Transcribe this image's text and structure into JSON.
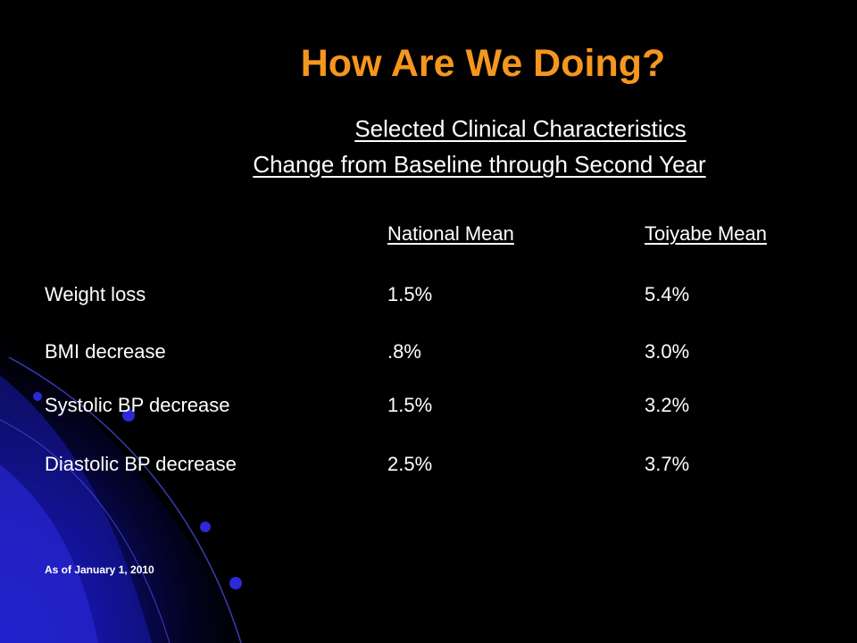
{
  "slide": {
    "title": "How Are We Doing?",
    "subtitle_line1": "Selected Clinical Characteristics",
    "subtitle_line2": "Change from Baseline through Second Year",
    "table": {
      "headers": [
        "",
        "National Mean",
        "Toiyabe Mean"
      ],
      "rows": [
        [
          "Weight loss",
          "1.5%",
          "5.4%"
        ],
        [
          "BMI decrease",
          ".8%",
          "3.0%"
        ],
        [
          "Systolic BP decrease",
          "1.5%",
          "3.2%"
        ],
        [
          "Diastolic BP decrease",
          "2.5%",
          "3.7%"
        ]
      ]
    },
    "footnote": "As of January 1, 2010"
  },
  "colors": {
    "background": "#000000",
    "title": "#f5961e",
    "text": "#ffffff",
    "accent_deco": "#1a1aa0"
  }
}
